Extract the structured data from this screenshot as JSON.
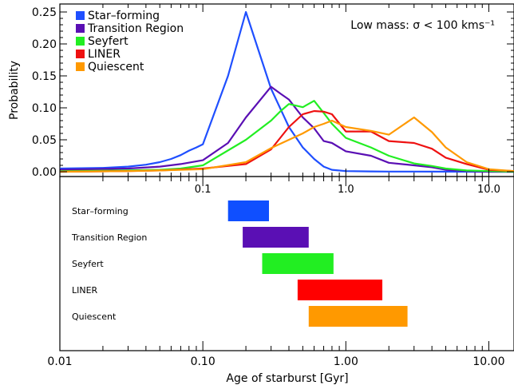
{
  "chart_data": [
    {
      "type": "line",
      "x_scale": "log",
      "xlim": [
        0.01,
        15
      ],
      "ylim": [
        0,
        0.25
      ],
      "ylabel": "Probability",
      "xlabel": "",
      "x_tick_labels": [
        "0.1",
        "1.0",
        "10.0"
      ],
      "x_tick_values": [
        0.1,
        1.0,
        10.0
      ],
      "y_tick_labels": [
        "0.00",
        "0.05",
        "0.10",
        "0.15",
        "0.20",
        "0.25"
      ],
      "y_tick_values": [
        0,
        0.05,
        0.1,
        0.15,
        0.2,
        0.25
      ],
      "annotation": "Low mass: σ < 100 kms⁻¹",
      "annotation_position": "top-right",
      "legend_position": "top-left",
      "grid": false,
      "series": [
        {
          "name": "Star–forming",
          "color": "#1f4fff",
          "x": [
            0.01,
            0.02,
            0.03,
            0.04,
            0.05,
            0.06,
            0.07,
            0.08,
            0.09,
            0.1,
            0.15,
            0.2,
            0.3,
            0.4,
            0.5,
            0.6,
            0.7,
            0.8,
            1.0,
            1.5,
            2,
            3,
            5,
            10,
            15
          ],
          "y": [
            0.005,
            0.006,
            0.008,
            0.011,
            0.015,
            0.02,
            0.026,
            0.033,
            0.038,
            0.043,
            0.15,
            0.25,
            0.13,
            0.07,
            0.038,
            0.02,
            0.008,
            0.003,
            0.001,
            0.0005,
            0.0003,
            0.0002,
            0.0001,
            0,
            0
          ]
        },
        {
          "name": "Transition Region",
          "color": "#5a0fb4",
          "x": [
            0.01,
            0.03,
            0.05,
            0.07,
            0.1,
            0.15,
            0.2,
            0.3,
            0.35,
            0.4,
            0.5,
            0.6,
            0.7,
            0.8,
            1.0,
            1.5,
            2,
            3,
            4,
            5,
            7,
            10,
            15
          ],
          "y": [
            0.003,
            0.005,
            0.008,
            0.012,
            0.018,
            0.045,
            0.085,
            0.133,
            0.122,
            0.113,
            0.085,
            0.068,
            0.048,
            0.045,
            0.032,
            0.025,
            0.014,
            0.01,
            0.007,
            0.003,
            0.001,
            0,
            0
          ]
        },
        {
          "name": "Seyfert",
          "color": "#22ee22",
          "x": [
            0.01,
            0.03,
            0.05,
            0.07,
            0.1,
            0.2,
            0.3,
            0.35,
            0.4,
            0.5,
            0.6,
            0.7,
            0.8,
            1.0,
            1.5,
            2,
            3,
            4,
            5,
            7,
            10,
            15
          ],
          "y": [
            0.001,
            0.002,
            0.003,
            0.005,
            0.01,
            0.05,
            0.08,
            0.095,
            0.106,
            0.101,
            0.111,
            0.092,
            0.075,
            0.053,
            0.038,
            0.025,
            0.013,
            0.009,
            0.005,
            0.002,
            0.001,
            0
          ]
        },
        {
          "name": "LINER",
          "color": "#ee1111",
          "x": [
            0.01,
            0.03,
            0.05,
            0.1,
            0.2,
            0.3,
            0.4,
            0.5,
            0.6,
            0.7,
            0.8,
            1.0,
            1.5,
            2,
            3,
            4,
            5,
            7,
            10,
            15
          ],
          "y": [
            0.0,
            0.001,
            0.002,
            0.005,
            0.012,
            0.035,
            0.07,
            0.09,
            0.095,
            0.094,
            0.09,
            0.063,
            0.063,
            0.048,
            0.045,
            0.036,
            0.022,
            0.012,
            0.003,
            0.001
          ]
        },
        {
          "name": "Quiescent",
          "color": "#ff9900",
          "x": [
            0.01,
            0.03,
            0.05,
            0.1,
            0.2,
            0.3,
            0.4,
            0.5,
            0.6,
            0.7,
            0.8,
            1.0,
            1.5,
            2,
            3,
            4,
            5,
            7,
            10,
            15
          ],
          "y": [
            0.0,
            0.001,
            0.002,
            0.004,
            0.015,
            0.037,
            0.05,
            0.06,
            0.07,
            0.075,
            0.08,
            0.07,
            0.064,
            0.058,
            0.085,
            0.062,
            0.038,
            0.015,
            0.004,
            0.001
          ]
        }
      ]
    },
    {
      "type": "bar",
      "orientation": "horizontal",
      "x_scale": "log",
      "xlim": [
        0.01,
        15
      ],
      "xlabel": "Age of starburst [Gyr]",
      "ylabel": "",
      "x_tick_labels": [
        "0.01",
        "0.10",
        "1.00",
        "10.00"
      ],
      "x_tick_values": [
        0.01,
        0.1,
        1.0,
        10.0
      ],
      "categories": [
        "Star–forming",
        "Transition Region",
        "Seyfert",
        "LINER",
        "Quiescent"
      ],
      "ranges": [
        [
          0.15,
          0.29
        ],
        [
          0.19,
          0.55
        ],
        [
          0.26,
          0.82
        ],
        [
          0.46,
          1.8
        ],
        [
          0.55,
          2.7
        ]
      ],
      "colors": [
        "#0f4fff",
        "#5a0fb4",
        "#22ee22",
        "#ff0000",
        "#ff9900"
      ]
    }
  ]
}
